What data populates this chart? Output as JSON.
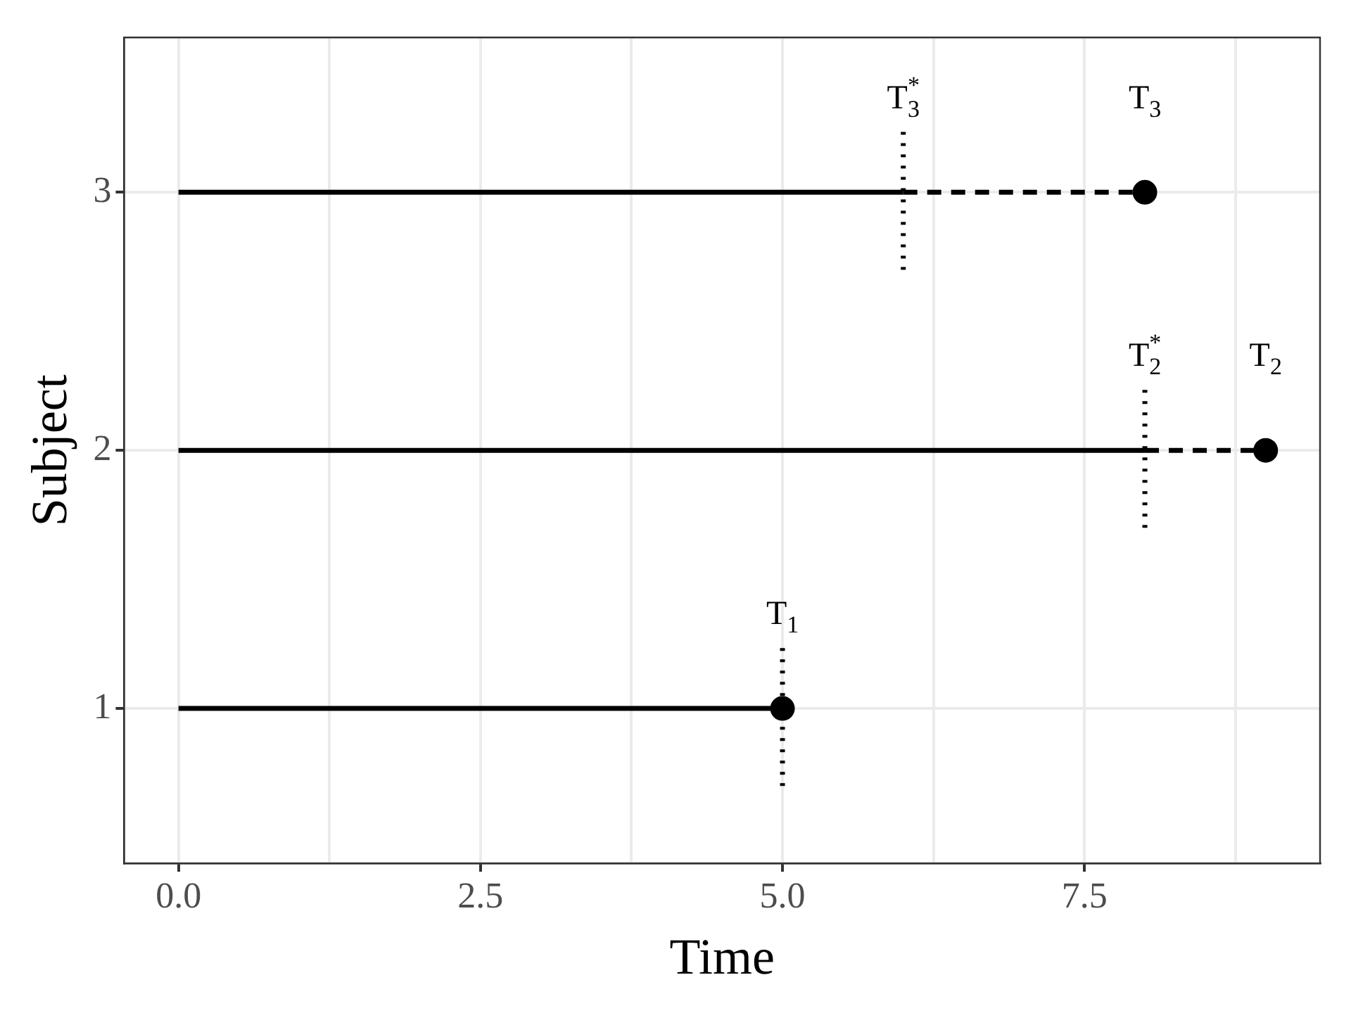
{
  "chart_data": {
    "type": "line",
    "xlabel": "Time",
    "ylabel": "Subject",
    "xlim": [
      -0.45,
      9.45
    ],
    "ylim": [
      0.4,
      3.6
    ],
    "xticks": [
      {
        "value": 0,
        "label": "0.0"
      },
      {
        "value": 1.25,
        "label": null
      },
      2.5,
      {
        "value": 3.75,
        "label": null
      },
      {
        "value": 5,
        "label": "5.0"
      },
      {
        "value": 6.25,
        "label": null
      },
      7.5,
      {
        "value": 8.75,
        "label": null
      }
    ],
    "yticks": [
      1,
      2,
      3
    ],
    "grid": true,
    "series": [
      {
        "color": "#000000",
        "x": [
          0,
          5
        ],
        "values": [
          1,
          1
        ],
        "line_style": "solid"
      },
      {
        "color": "#000000",
        "x": [
          0,
          8
        ],
        "values": [
          2,
          2
        ],
        "line_style": "solid"
      },
      {
        "color": "#000000",
        "x": [
          0,
          6
        ],
        "values": [
          3,
          3
        ],
        "line_style": "solid"
      },
      {
        "color": "#000000",
        "x": [
          8,
          9
        ],
        "values": [
          2,
          2
        ],
        "line_style": "dashed"
      },
      {
        "color": "#000000",
        "x": [
          6,
          8
        ],
        "values": [
          3,
          3
        ],
        "line_style": "dashed"
      },
      {
        "color": "#000000",
        "x": [
          5,
          5
        ],
        "values": [
          0.7,
          1.25
        ],
        "line_style": "dotted"
      },
      {
        "color": "#000000",
        "x": [
          8,
          8
        ],
        "values": [
          1.7,
          2.25
        ],
        "line_style": "dotted"
      },
      {
        "color": "#000000",
        "x": [
          6,
          6
        ],
        "values": [
          2.7,
          3.25
        ],
        "line_style": "dotted"
      },
      {
        "type": "scatter",
        "color": "#000000",
        "x": [
          5,
          9,
          8
        ],
        "values": [
          1,
          2,
          3
        ],
        "marker": "circle"
      }
    ],
    "annotations": [
      {
        "text": "T$_{1}$",
        "x": 5,
        "y": 1.25
      },
      {
        "text": "T$_{2}$$^{*}$",
        "x": 8,
        "y": 2.25
      },
      {
        "text": "T$_{2}$",
        "x": 9,
        "y": 2
      },
      {
        "text": "T$_{3}$$^{*}$",
        "x": 6,
        "y": 3.25
      },
      {
        "text": "T$_{3}$",
        "x": 8,
        "y": 3
      }
    ]
  }
}
